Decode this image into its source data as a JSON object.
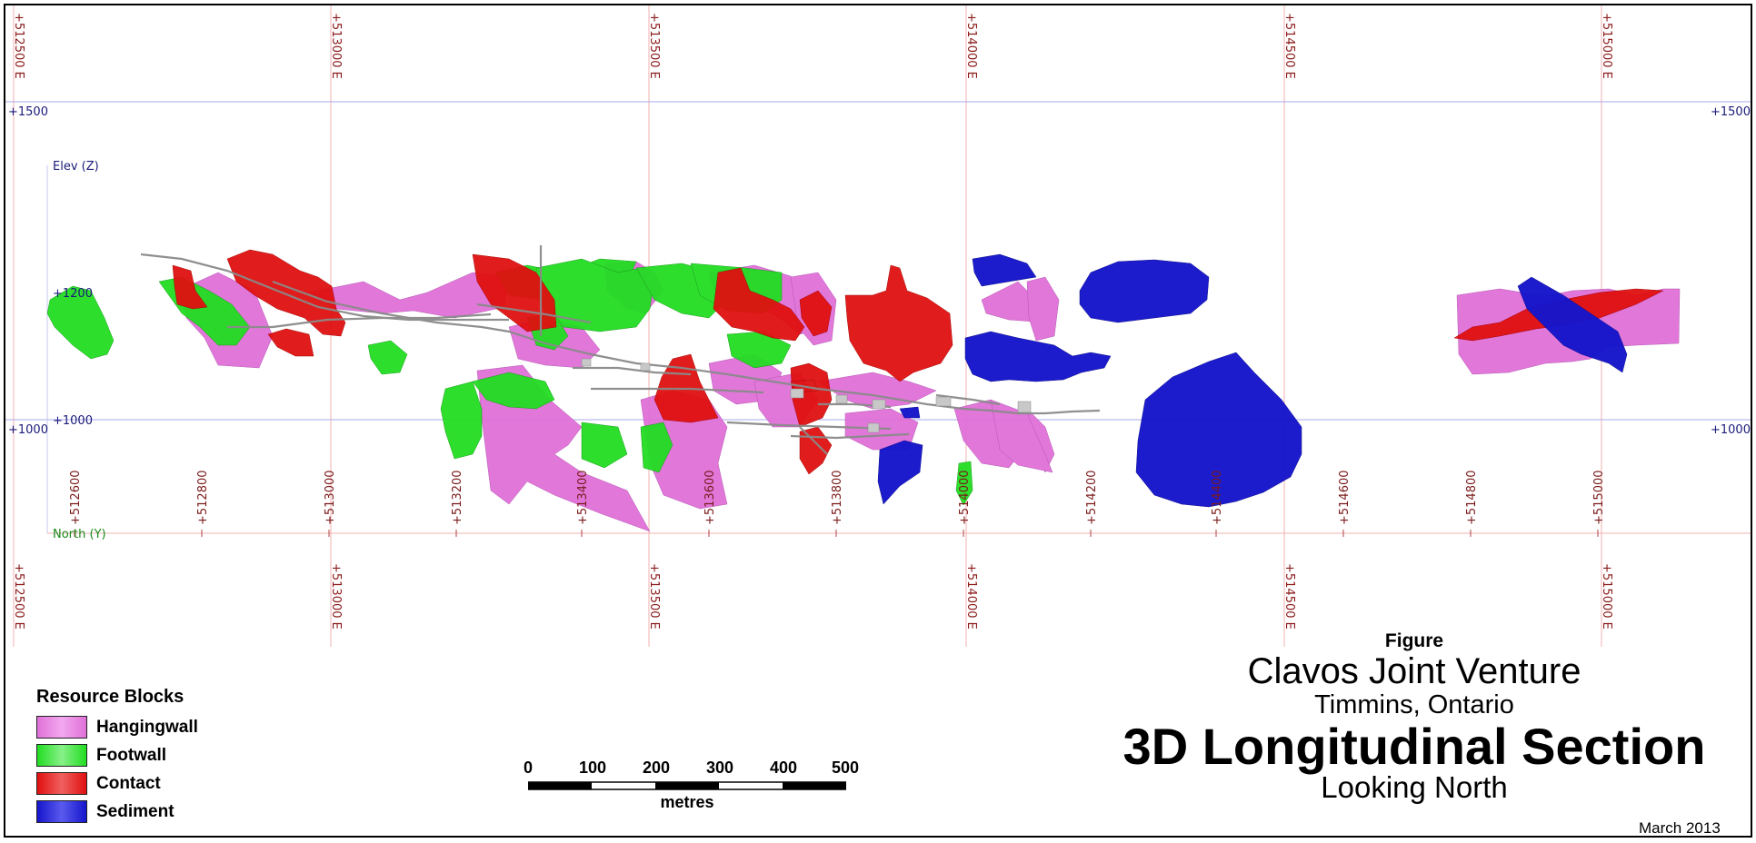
{
  "grid": {
    "easting_labels": [
      "+512500 E",
      "+513000 E",
      "+513500 E",
      "+514000 E",
      "+514500 E",
      "+515000 E"
    ],
    "elevation_labels": [
      "+1500",
      "+1000"
    ],
    "elevation_right_labels": [
      "+1500",
      "+1000"
    ]
  },
  "axes": {
    "z_label": "Elev (Z)",
    "z_ticks": [
      "+1200",
      "+1000"
    ],
    "y_label": "North (Y)",
    "y_ticks": [
      "+512600",
      "+512800",
      "+513000",
      "+513200",
      "+513400",
      "+513600",
      "+513800",
      "+514000",
      "+514200",
      "+514400",
      "+514600",
      "+514800",
      "+515000"
    ]
  },
  "legend": {
    "title": "Resource Blocks",
    "items": [
      {
        "label": "Hangingwall",
        "color": "#e070d8"
      },
      {
        "label": "Footwall",
        "color": "#22dd22"
      },
      {
        "label": "Contact",
        "color": "#e01010"
      },
      {
        "label": "Sediment",
        "color": "#1515cc"
      }
    ]
  },
  "scale_bar": {
    "ticks": [
      "0",
      "100",
      "200",
      "300",
      "400",
      "500"
    ],
    "unit": "metres"
  },
  "title_block": {
    "figure": "Figure",
    "project": "Clavos Joint Venture",
    "location": "Timmins, Ontario",
    "section": "3D Longitudinal Section",
    "direction": "Looking North",
    "date": "March 2013"
  },
  "colors": {
    "hangingwall": "#e070d8",
    "footwall": "#22dd22",
    "contact": "#e01010",
    "sediment": "#1515cc",
    "easting_grid": "#f0a0a0",
    "elevation_grid": "#9a9ae8"
  }
}
